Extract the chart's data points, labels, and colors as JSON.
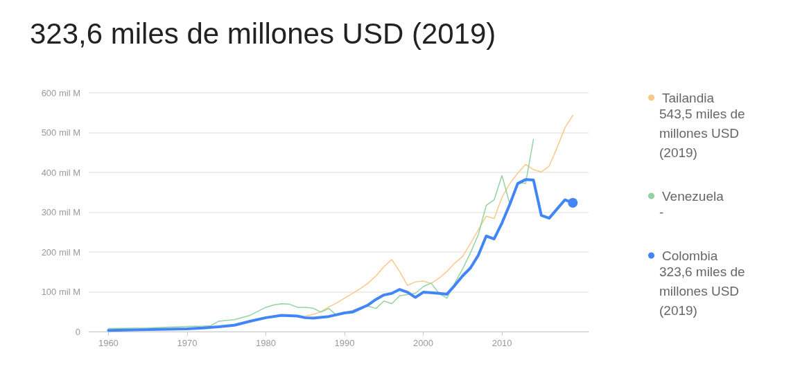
{
  "chart_data": {
    "type": "line",
    "title": "323,6 miles de millones USD (2019)",
    "xlim": [
      1957.5,
      2021
    ],
    "xticks": [
      1960,
      1970,
      1980,
      1990,
      2000,
      2010
    ],
    "ylim": [
      0,
      600
    ],
    "yticks": [
      {
        "value": 0,
        "label": "0"
      },
      {
        "value": 100,
        "label": "100 mil M"
      },
      {
        "value": 200,
        "label": "200 mil M"
      },
      {
        "value": 300,
        "label": "300 mil M"
      },
      {
        "value": 400,
        "label": "400 mil M"
      },
      {
        "value": 500,
        "label": "500 mil M"
      },
      {
        "value": 600,
        "label": "600 mil M"
      }
    ],
    "grid": "y",
    "legend": "right",
    "marker": "none",
    "annotations": [
      "543,5 miles de millones USD (2019)",
      "-",
      "323,6 miles de millones USD (2019)"
    ],
    "series": [
      {
        "name": "Tailandia",
        "color": "#f8c98a",
        "x": [
          1985,
          1986,
          1987,
          1988,
          1989,
          1990,
          1991,
          1992,
          1993,
          1994,
          1995,
          1996,
          1997,
          1998,
          1999,
          2000,
          2001,
          2002,
          2003,
          2004,
          2005,
          2006,
          2007,
          2008,
          2009,
          2010,
          2011,
          2012,
          2013,
          2014,
          2015,
          2016,
          2017,
          2018,
          2019
        ],
        "values": [
          39,
          43,
          50,
          62,
          72,
          84,
          96,
          108,
          122,
          140,
          163,
          181,
          151,
          116,
          125,
          127,
          121,
          134,
          151,
          172,
          189,
          221,
          256,
          290,
          284,
          337,
          372,
          398,
          420,
          407,
          401,
          416,
          462,
          512,
          543.5
        ]
      },
      {
        "name": "Venezuela",
        "color": "#93d2a2",
        "x": [
          1960,
          1965,
          1970,
          1972,
          1973,
          1974,
          1976,
          1978,
          1980,
          1981,
          1982,
          1983,
          1984,
          1985,
          1986,
          1987,
          1988,
          1989,
          1990,
          1991,
          1992,
          1993,
          1994,
          1995,
          1996,
          1997,
          1998,
          1999,
          2000,
          2001,
          2002,
          2003,
          2004,
          2005,
          2006,
          2007,
          2008,
          2009,
          2010,
          2011,
          2012,
          2013,
          2014
        ],
        "values": [
          8,
          9,
          13,
          14,
          15,
          26,
          30,
          41,
          61,
          67,
          70,
          69,
          61,
          61,
          59,
          49,
          58,
          41,
          48,
          53,
          60,
          64,
          58,
          77,
          70,
          90,
          93,
          96,
          113,
          122,
          96,
          84,
          122,
          157,
          198,
          244,
          317,
          331,
          392,
          320,
          375,
          372,
          483
        ]
      },
      {
        "name": "Colombia",
        "color": "#4285f4",
        "x": [
          1960,
          1965,
          1970,
          1972,
          1974,
          1976,
          1978,
          1980,
          1982,
          1984,
          1985,
          1986,
          1988,
          1990,
          1991,
          1992,
          1993,
          1994,
          1995,
          1996,
          1997,
          1998,
          1999,
          2000,
          2001,
          2002,
          2003,
          2004,
          2005,
          2006,
          2007,
          2008,
          2009,
          2010,
          2011,
          2012,
          2013,
          2014,
          2015,
          2016,
          2017,
          2018,
          2019
        ],
        "values": [
          3,
          5,
          7,
          9,
          12,
          16,
          26,
          35,
          41,
          39,
          35,
          34,
          38,
          47,
          49,
          58,
          67,
          81,
          92,
          96,
          106,
          99,
          86,
          99,
          98,
          96,
          94,
          116,
          140,
          160,
          192,
          240,
          233,
          273,
          320,
          372,
          382,
          381,
          292,
          285,
          308,
          331,
          323.6
        ]
      }
    ]
  }
}
